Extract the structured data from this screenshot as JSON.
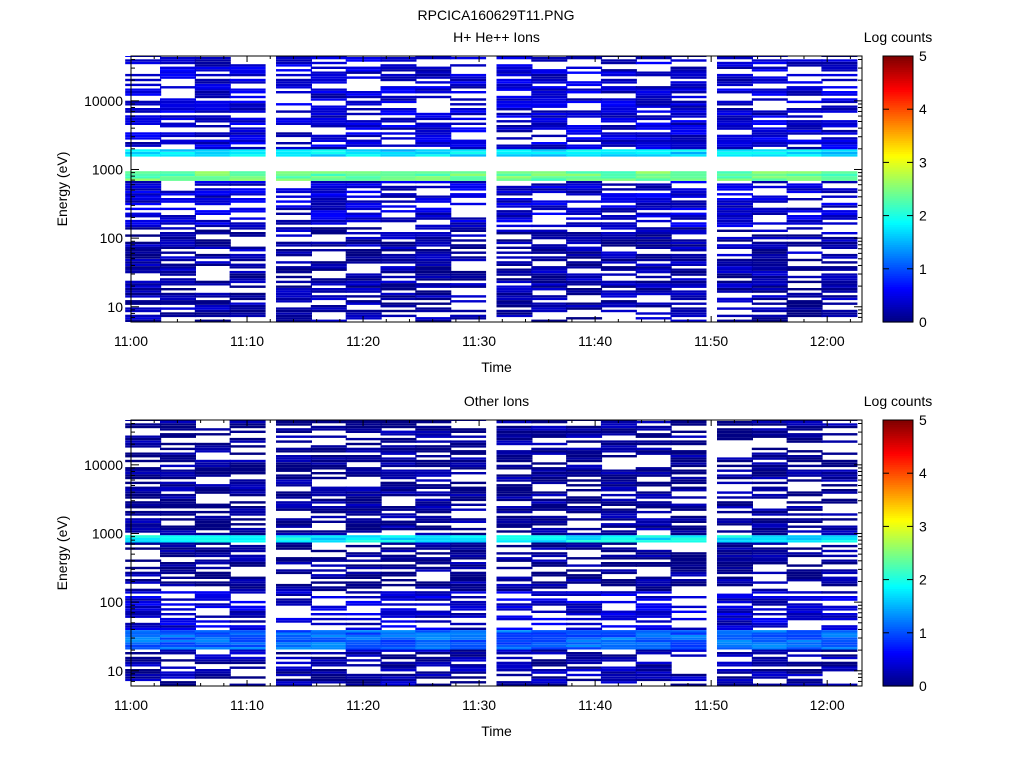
{
  "figure_title": "RPCICA160629T11.PNG",
  "colorscale": {
    "stops": [
      "#00007f",
      "#0000ff",
      "#007fff",
      "#00ffff",
      "#7fff7f",
      "#ffff00",
      "#ff7f00",
      "#ff0000",
      "#7f0000"
    ]
  },
  "chart_data": [
    {
      "type": "heatmap",
      "title": "H+ He++ Ions",
      "xlabel": "Time",
      "ylabel": "Energy (eV)",
      "colorbar_label": "Log counts",
      "colorbar_ticks": [
        "0",
        "1",
        "2",
        "3",
        "4",
        "5"
      ],
      "x_ticks": [
        "11:00",
        "11:10",
        "11:20",
        "11:30",
        "11:40",
        "11:50",
        "12:00"
      ],
      "x_range": [
        "11:00",
        "12:03"
      ],
      "y_scale": "log",
      "y_ticks": [
        "10",
        "100",
        "1000",
        "10000"
      ],
      "y_range": [
        6,
        45000
      ],
      "time_bins": [
        "11:01",
        "11:04",
        "11:07",
        "11:10",
        "11:14",
        "11:17",
        "11:20",
        "11:23",
        "11:26",
        "11:29",
        "11:33",
        "11:36",
        "11:39",
        "11:42",
        "11:45",
        "11:48",
        "11:52",
        "11:55",
        "11:58",
        "12:01"
      ],
      "data_through_bin": 19,
      "zmax": 5,
      "band_pattern": [
        {
          "energy_min": 700,
          "energy_max": 950,
          "log_counts": 2.4
        },
        {
          "energy_min": 1500,
          "energy_max": 1900,
          "log_counts": 1.7
        },
        {
          "energy_min": 2000,
          "energy_max": 45000,
          "log_counts": 0.4
        },
        {
          "energy_min": 150,
          "energy_max": 700,
          "log_counts": 0.4
        },
        {
          "energy_min": 6,
          "energy_max": 150,
          "log_counts": 0.2
        }
      ]
    },
    {
      "type": "heatmap",
      "title": "Other Ions",
      "xlabel": "Time",
      "ylabel": "Energy (eV)",
      "colorbar_label": "Log counts",
      "colorbar_ticks": [
        "0",
        "1",
        "2",
        "3",
        "4",
        "5"
      ],
      "x_ticks": [
        "11:00",
        "11:10",
        "11:20",
        "11:30",
        "11:40",
        "11:50",
        "12:00"
      ],
      "x_range": [
        "11:00",
        "12:03"
      ],
      "y_scale": "log",
      "y_ticks": [
        "10",
        "100",
        "1000",
        "10000"
      ],
      "y_range": [
        6,
        45000
      ],
      "time_bins": [
        "11:01",
        "11:04",
        "11:07",
        "11:10",
        "11:14",
        "11:17",
        "11:20",
        "11:23",
        "11:26",
        "11:29",
        "11:33",
        "11:36",
        "11:39",
        "11:42",
        "11:45",
        "11:48",
        "11:52",
        "11:55",
        "11:58",
        "12:01"
      ],
      "data_through_bin": 19,
      "zmax": 5,
      "band_pattern": [
        {
          "energy_min": 750,
          "energy_max": 950,
          "log_counts": 1.8
        },
        {
          "energy_min": 20,
          "energy_max": 40,
          "log_counts": 1.1
        },
        {
          "energy_min": 40,
          "energy_max": 150,
          "log_counts": 0.4
        },
        {
          "energy_min": 6,
          "energy_max": 20,
          "log_counts": 0.2
        },
        {
          "energy_min": 150,
          "energy_max": 45000,
          "log_counts": 0.1
        }
      ]
    }
  ]
}
